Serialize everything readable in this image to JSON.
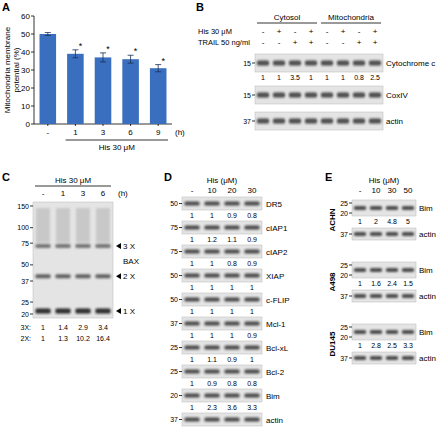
{
  "chart_data": {
    "type": "bar",
    "panel": "A",
    "y_label": "Mitochondria membrane potential (%)",
    "categories": [
      "-",
      "1",
      "3",
      "6",
      "9"
    ],
    "values": [
      50,
      39,
      37,
      36,
      31
    ],
    "errors": [
      0.8,
      2.2,
      2.5,
      2.2,
      2.0
    ],
    "significance": [
      null,
      "*",
      "*",
      "*",
      "*"
    ],
    "x_unit": "(h)",
    "treatment": "His 30 μM",
    "ylim": [
      0,
      60
    ],
    "yticks": [
      0,
      10,
      20,
      30,
      40,
      50,
      60
    ],
    "color": "#3a6fbf",
    "grid": false
  },
  "blots": [
    {
      "panel": "B",
      "groups": [
        "Cytosol",
        "Mitochondria"
      ],
      "conditions": [
        {
          "label": "His 30 μM",
          "lanes": [
            "-",
            "+",
            "-",
            "+",
            "-",
            "+",
            "-",
            "+"
          ]
        },
        {
          "label": "TRAIL 50 ng/ml",
          "lanes": [
            "-",
            "-",
            "+",
            "+",
            "-",
            "-",
            "+",
            "+"
          ]
        }
      ],
      "rows": [
        {
          "label": "Cytochrome c",
          "mw": [
            15
          ],
          "quant": [
            1,
            1,
            3.5,
            1,
            1,
            1,
            0.8,
            2.5
          ]
        },
        {
          "label": "CoxIV",
          "mw": [
            15
          ]
        },
        {
          "label": "actin",
          "mw": [
            37
          ]
        }
      ]
    },
    {
      "panel": "C",
      "header": "His 30 μM",
      "lanes": [
        "-",
        "1",
        "3",
        "6"
      ],
      "unit": "(h)",
      "rows": [
        {
          "label": "BAX",
          "mw": [
            150,
            100,
            75,
            50,
            37,
            25,
            20
          ],
          "band_labels": [
            "3 X",
            "2 X",
            "1 X"
          ]
        }
      ],
      "quant": [
        {
          "label": "3X:",
          "values": [
            1,
            1.4,
            2.9,
            3.4
          ]
        },
        {
          "label": "2X:",
          "values": [
            1,
            1.3,
            10.2,
            16.4
          ]
        }
      ]
    },
    {
      "panel": "D",
      "header": "His (μM)",
      "lanes": [
        "-",
        "10",
        "20",
        "30"
      ],
      "rows": [
        {
          "label": "DR5",
          "mw": [
            50
          ],
          "quant": [
            1,
            1,
            0.9,
            0.8
          ]
        },
        {
          "label": "cIAP1",
          "mw": [
            75
          ],
          "quant": [
            1,
            1.2,
            1.1,
            0.9
          ]
        },
        {
          "label": "cIAP2",
          "mw": [
            75
          ],
          "quant": [
            1,
            1,
            0.8,
            0.9
          ]
        },
        {
          "label": "XIAP",
          "mw": [
            50
          ],
          "quant": [
            1,
            1,
            1,
            1
          ]
        },
        {
          "label": "c-FLIP",
          "mw": [
            50
          ],
          "quant": [
            1,
            1,
            1,
            1
          ]
        },
        {
          "label": "Mcl-1",
          "mw": [
            37
          ],
          "quant": [
            1,
            1,
            1,
            0.9
          ]
        },
        {
          "label": "Bcl-xL",
          "mw": [
            25
          ],
          "quant": [
            1,
            1.1,
            0.9,
            1
          ]
        },
        {
          "label": "Bcl-2",
          "mw": [
            25
          ],
          "quant": [
            1,
            0.9,
            0.8,
            0.8
          ]
        },
        {
          "label": "Bim",
          "mw": [
            20
          ],
          "quant": [
            1,
            2.3,
            3.6,
            3.3
          ]
        },
        {
          "label": "actin",
          "mw": [
            37
          ]
        }
      ]
    },
    {
      "panel": "E",
      "header": "His (μM)",
      "lanes": [
        "-",
        "10",
        "30",
        "50"
      ],
      "cell_lines": [
        {
          "label": "ACHN",
          "rows": [
            {
              "label": "Bim",
              "mw": [
                25,
                20
              ],
              "quant": [
                1,
                2,
                4.8,
                5
              ]
            },
            {
              "label": "actin",
              "mw": [
                37
              ]
            }
          ]
        },
        {
          "label": "A498",
          "rows": [
            {
              "label": "Bim",
              "mw": [
                25,
                20
              ],
              "quant": [
                1,
                1.6,
                2.4,
                1.5
              ]
            },
            {
              "label": "actin",
              "mw": [
                37
              ]
            }
          ]
        },
        {
          "label": "DU145",
          "rows": [
            {
              "label": "Bim",
              "mw": [
                25,
                20
              ],
              "quant": [
                1,
                2.8,
                2.5,
                3.3
              ]
            },
            {
              "label": "actin",
              "mw": [
                37
              ]
            }
          ]
        }
      ]
    }
  ]
}
